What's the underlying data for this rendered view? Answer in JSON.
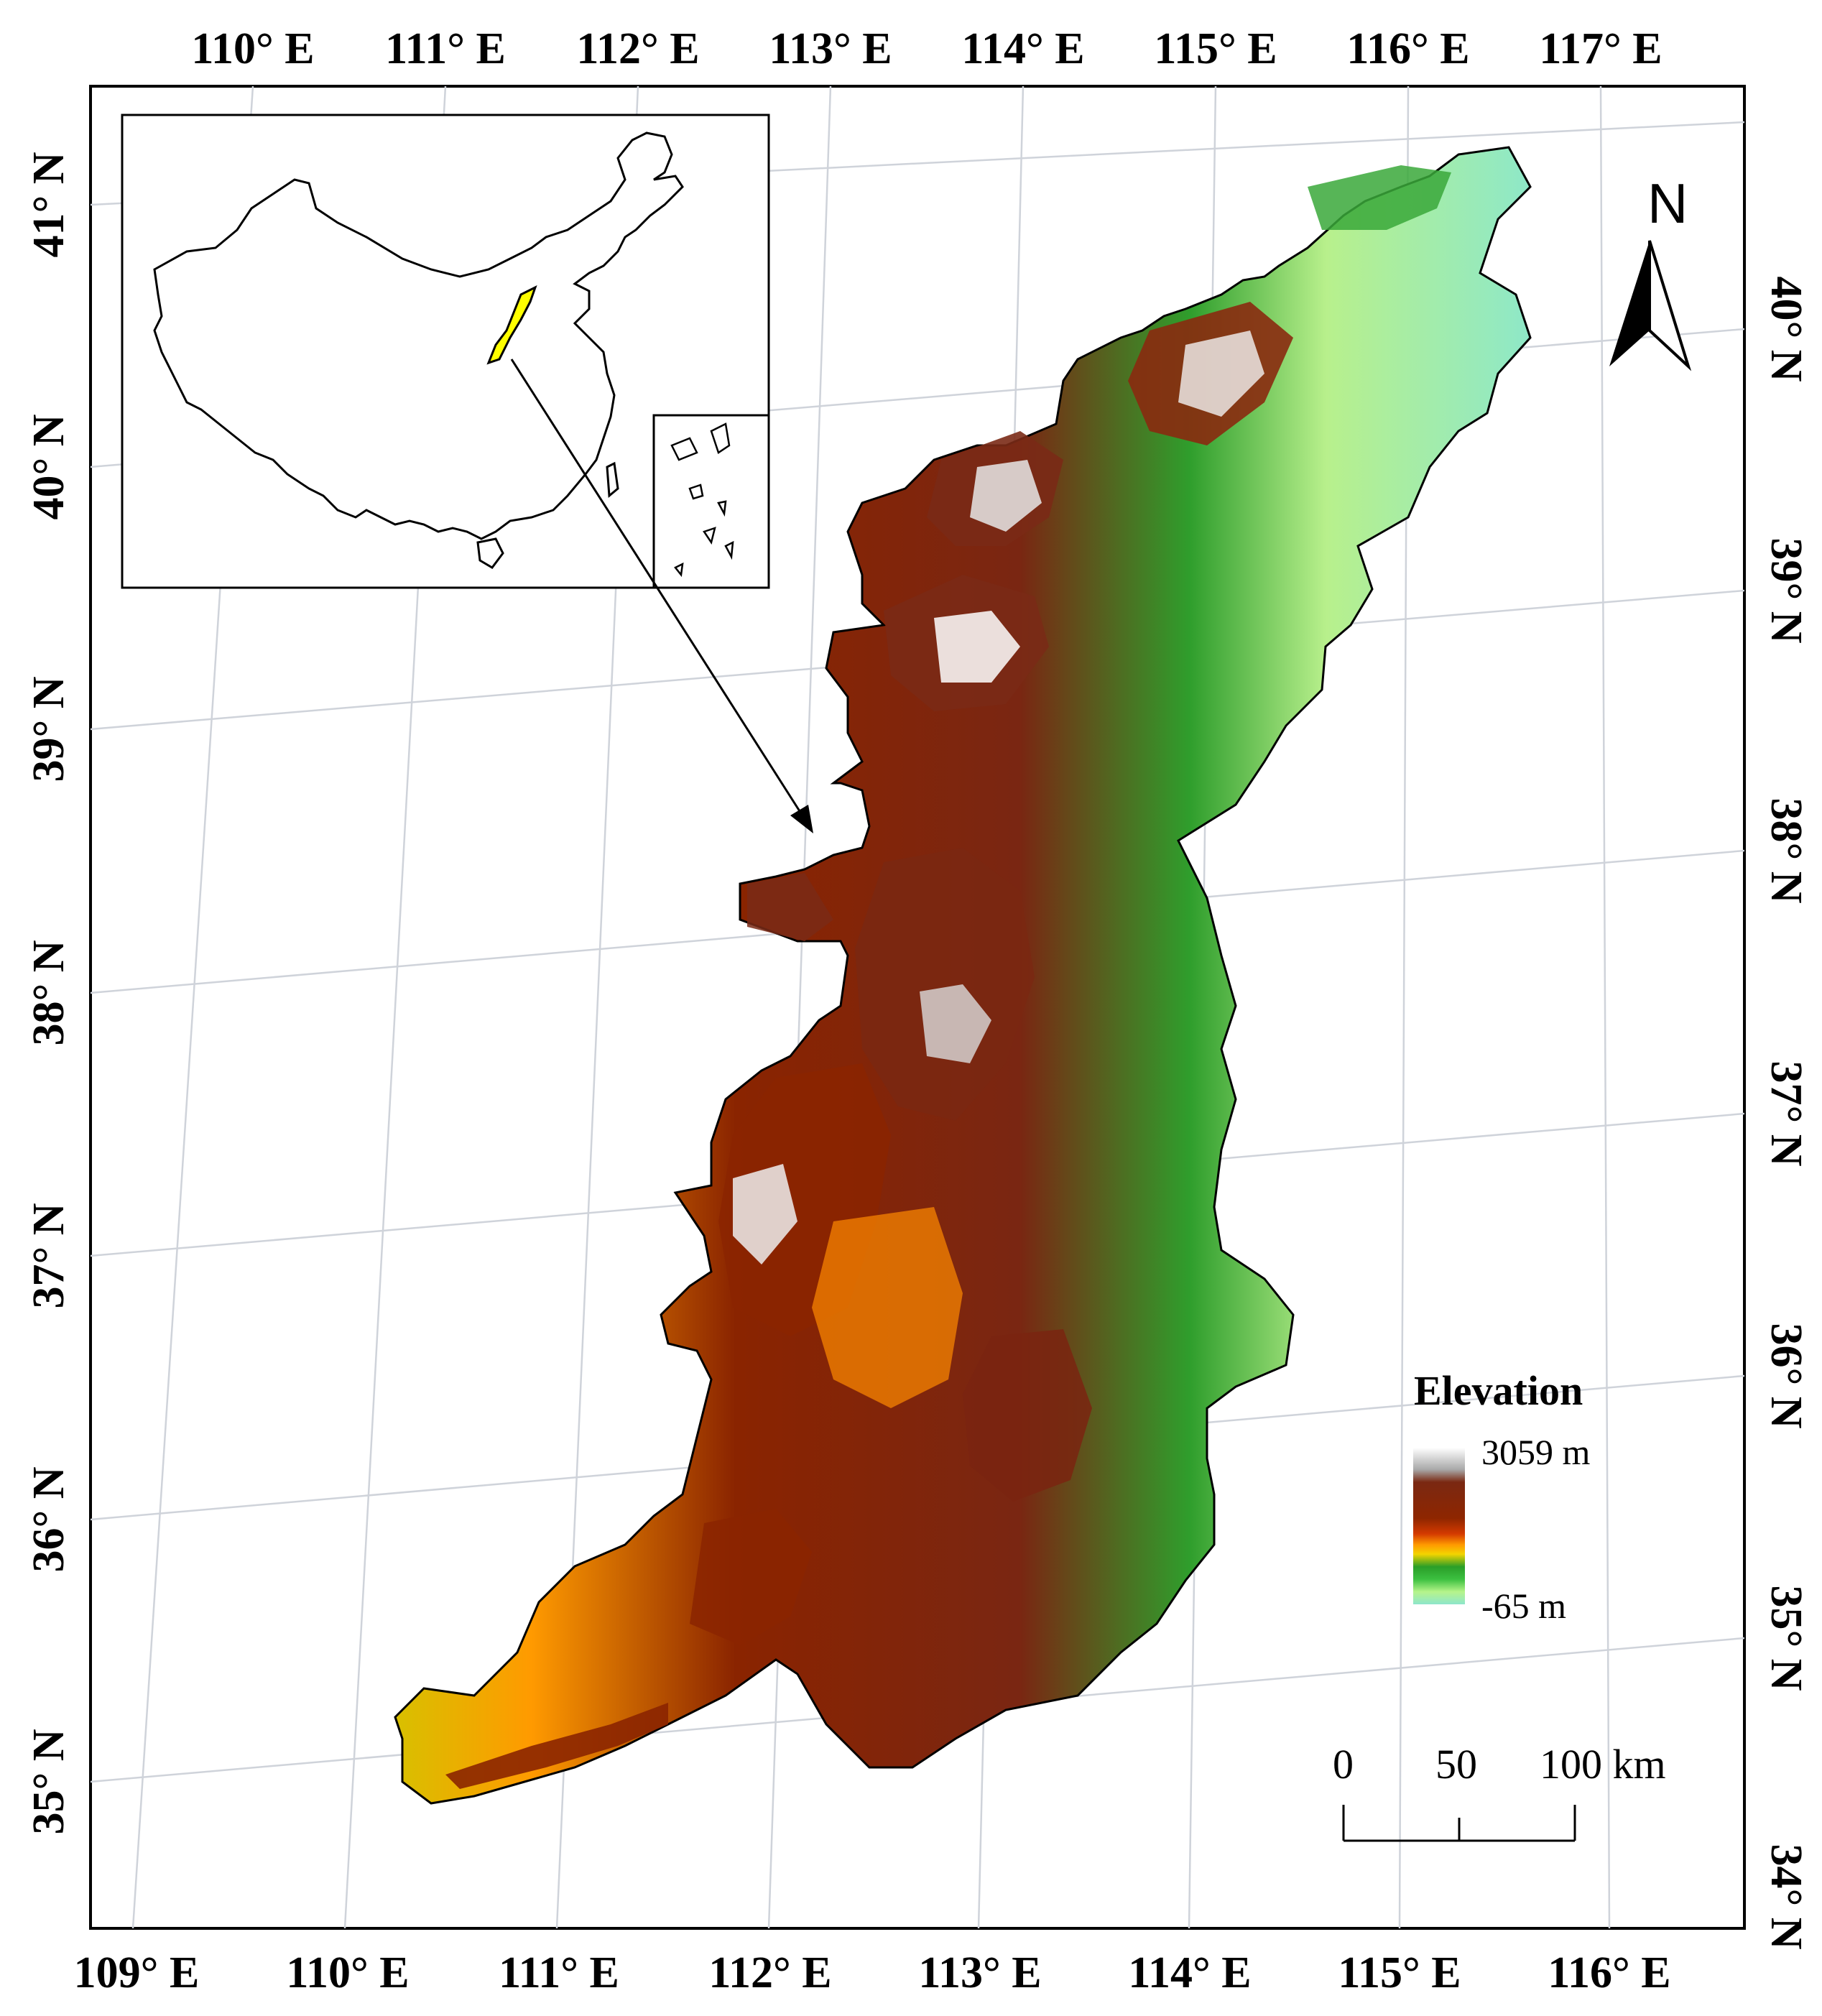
{
  "map": {
    "top_lon_labels": [
      "110° E",
      "111° E",
      "112° E",
      "113° E",
      "114° E",
      "115° E",
      "116° E",
      "117° E"
    ],
    "bottom_lon_labels": [
      "109° E",
      "110° E",
      "111° E",
      "112° E",
      "113° E",
      "114° E",
      "115° E",
      "116° E"
    ],
    "left_lat_labels": [
      "41° N",
      "40° N",
      "39° N",
      "38° N",
      "37° N",
      "36° N",
      "35° N"
    ],
    "right_lat_labels": [
      "40° N",
      "39° N",
      "38° N",
      "37° N",
      "36° N",
      "35° N",
      "34° N"
    ],
    "north_label": "N",
    "legend": {
      "title": "Elevation",
      "max_label": "3059 m",
      "min_label": "-65 m",
      "max_value_m": 3059,
      "min_value_m": -65,
      "ramp_colors": [
        "#ffffff",
        "#b0b0b0",
        "#7a2a14",
        "#8b2500",
        "#c83200",
        "#ff8a00",
        "#ffd200",
        "#2fa52a",
        "#37c23a",
        "#a8f07a",
        "#8ee8c6"
      ]
    },
    "scale_bar": {
      "labels": [
        "0",
        "50",
        "100 km"
      ]
    },
    "colors": {
      "study_area_yellow": "#ffff00",
      "grid": "#cfd3da",
      "plain": "#8eeac2",
      "mountain": "#7c2410"
    }
  }
}
